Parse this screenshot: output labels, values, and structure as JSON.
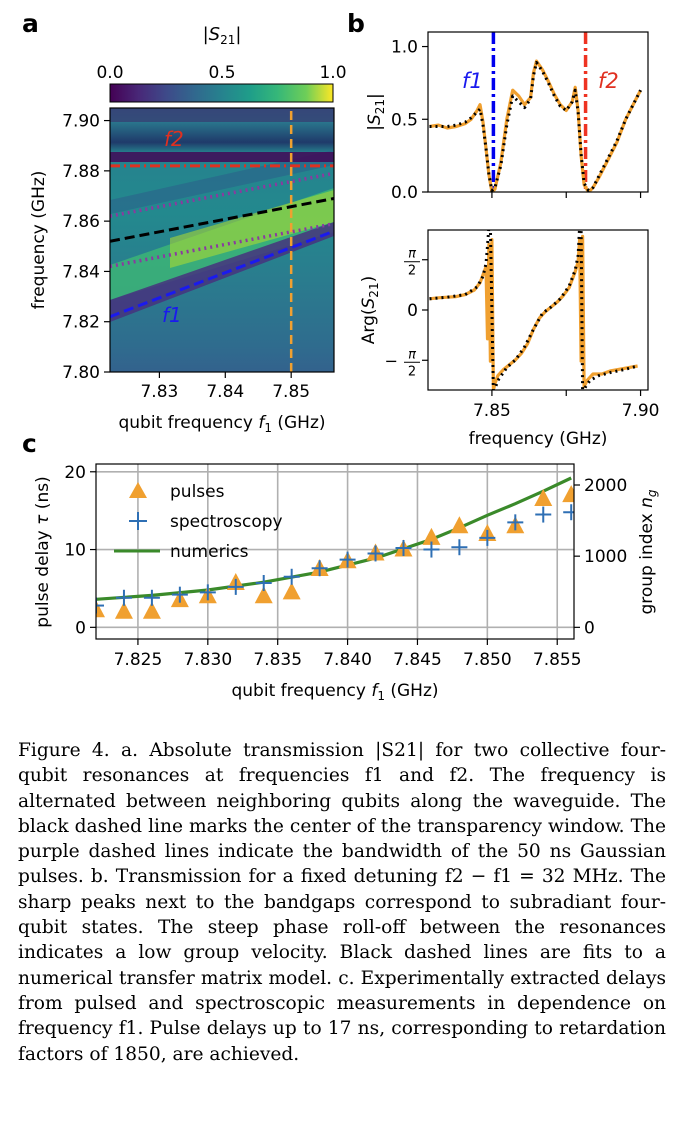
{
  "figure": {
    "panel_a_letter": "a",
    "panel_b_letter": "b",
    "panel_c_letter": "c"
  },
  "chart_data": [
    {
      "id": "a",
      "type": "heatmap",
      "colorbar_label": "|S21|",
      "colorbar_ticks": [
        "0.0",
        "0.5",
        "1.0"
      ],
      "xlabel": "qubit frequency f1 (GHz)",
      "ylabel": "frequency (GHz)",
      "xlim": [
        7.8225,
        7.8565
      ],
      "ylim": [
        7.8,
        7.905
      ],
      "x_ticks": [
        7.83,
        7.84,
        7.85
      ],
      "x_tick_labels": [
        "7.83",
        "7.84",
        "7.85"
      ],
      "y_ticks": [
        7.8,
        7.82,
        7.84,
        7.86,
        7.88,
        7.9
      ],
      "y_tick_labels": [
        "7.80",
        "7.82",
        "7.84",
        "7.86",
        "7.88",
        "7.90"
      ],
      "lines": [
        {
          "label": "f2",
          "style": "red dash-dot",
          "x": [
            7.8225,
            7.8565
          ],
          "y": [
            7.882,
            7.882
          ]
        },
        {
          "label": "",
          "style": "black dashed",
          "x": [
            7.8225,
            7.8565
          ],
          "y": [
            7.852,
            7.869
          ]
        },
        {
          "label": "",
          "style": "purple dotted upper",
          "x": [
            7.8225,
            7.8565
          ],
          "y": [
            7.862,
            7.879
          ]
        },
        {
          "label": "",
          "style": "purple dotted lower",
          "x": [
            7.8225,
            7.8565
          ],
          "y": [
            7.842,
            7.859
          ]
        },
        {
          "label": "f1",
          "style": "blue dashed",
          "x": [
            7.8225,
            7.8565
          ],
          "y": [
            7.822,
            7.856
          ]
        },
        {
          "label": "",
          "style": "orange dashed vertical",
          "x": [
            7.85,
            7.85
          ],
          "y": [
            7.8,
            7.905
          ]
        }
      ]
    },
    {
      "id": "b-top",
      "type": "line",
      "ylabel": "|S21|",
      "xlim": [
        7.8285,
        7.9025
      ],
      "ylim": [
        0.0,
        1.1
      ],
      "y_ticks": [
        0.0,
        0.5,
        1.0
      ],
      "y_tick_labels": [
        "0.0",
        "0.5",
        "1.0"
      ],
      "markers": [
        {
          "label": "f1",
          "x": 7.8505,
          "color": "#0000ee"
        },
        {
          "label": "f2",
          "x": 7.8815,
          "color": "#ee3322"
        }
      ],
      "series": [
        {
          "name": "",
          "x": [
            7.829,
            7.832,
            7.835,
            7.838,
            7.841,
            7.843,
            7.845,
            7.846,
            7.847,
            7.848,
            7.849,
            7.85,
            7.851,
            7.853,
            7.855,
            7.857,
            7.859,
            7.861,
            7.863,
            7.864,
            7.865,
            7.867,
            7.869,
            7.871,
            7.873,
            7.875,
            7.877,
            7.878,
            7.879,
            7.88,
            7.881,
            7.8825,
            7.884,
            7.886,
            7.889,
            7.892,
            7.895,
            7.898,
            7.9
          ],
          "y": [
            0.45,
            0.46,
            0.44,
            0.45,
            0.47,
            0.5,
            0.56,
            0.6,
            0.48,
            0.3,
            0.12,
            0.0,
            0.02,
            0.2,
            0.5,
            0.7,
            0.66,
            0.6,
            0.65,
            0.82,
            0.9,
            0.84,
            0.76,
            0.67,
            0.6,
            0.56,
            0.62,
            0.72,
            0.56,
            0.25,
            0.05,
            0.0,
            0.03,
            0.1,
            0.22,
            0.34,
            0.5,
            0.62,
            0.7
          ]
        },
        {
          "name": "",
          "x": [
            7.829,
            7.832,
            7.835,
            7.838,
            7.841,
            7.843,
            7.845,
            7.846,
            7.847,
            7.848,
            7.849,
            7.85,
            7.851,
            7.853,
            7.855,
            7.857,
            7.859,
            7.861,
            7.863,
            7.864,
            7.865,
            7.867,
            7.869,
            7.871,
            7.873,
            7.875,
            7.877,
            7.878,
            7.879,
            7.88,
            7.881,
            7.8825,
            7.884,
            7.886,
            7.889,
            7.892,
            7.895,
            7.898,
            7.9
          ],
          "y": [
            0.45,
            0.45,
            0.45,
            0.46,
            0.48,
            0.51,
            0.55,
            0.57,
            0.46,
            0.3,
            0.12,
            0.01,
            0.03,
            0.18,
            0.46,
            0.66,
            0.62,
            0.58,
            0.64,
            0.8,
            0.89,
            0.83,
            0.75,
            0.66,
            0.59,
            0.56,
            0.62,
            0.7,
            0.55,
            0.26,
            0.06,
            0.01,
            0.03,
            0.11,
            0.23,
            0.35,
            0.5,
            0.62,
            0.7
          ]
        }
      ]
    },
    {
      "id": "b-bottom",
      "type": "line",
      "xlabel": "frequency (GHz)",
      "ylabel": "Arg(S21)",
      "xlim": [
        7.8285,
        7.9025
      ],
      "ylim": [
        -2.5,
        2.5
      ],
      "x_ticks": [
        7.85,
        7.875,
        7.9
      ],
      "x_tick_labels": [
        "7.85",
        "",
        "7.90"
      ],
      "y_ticks": [
        1.5708,
        0,
        -1.5708
      ],
      "y_tick_labels": [
        "π/2",
        "0",
        "−π/2"
      ],
      "series": [
        {
          "name": "",
          "x": [
            7.829,
            7.832,
            7.835,
            7.838,
            7.841,
            7.844,
            7.846,
            7.847,
            7.848,
            7.8485,
            7.849,
            7.8495,
            7.85,
            7.8505,
            7.851,
            7.852,
            7.854,
            7.856,
            7.858,
            7.86,
            7.862,
            7.864,
            7.866,
            7.868,
            7.87,
            7.872,
            7.874,
            7.876,
            7.877,
            7.878,
            7.879,
            7.8795,
            7.88,
            7.8805,
            7.881,
            7.8815,
            7.882,
            7.884,
            7.887,
            7.89,
            7.893,
            7.896,
            7.899
          ],
          "y": [
            0.35,
            0.38,
            0.4,
            0.42,
            0.48,
            0.62,
            0.85,
            1.1,
            1.35,
            -0.9,
            2.05,
            -1.6,
            2.2,
            -2.5,
            -2.3,
            -2.05,
            -1.85,
            -1.7,
            -1.55,
            -1.35,
            -1.05,
            -0.6,
            -0.25,
            -0.05,
            0.1,
            0.25,
            0.45,
            0.7,
            0.95,
            1.2,
            1.5,
            2.2,
            -1.6,
            2.3,
            -2.4,
            -2.3,
            -2.2,
            -2.0,
            -2.0,
            -1.9,
            -1.85,
            -1.8,
            -1.75
          ]
        },
        {
          "name": "",
          "x": [
            7.829,
            7.835,
            7.841,
            7.845,
            7.847,
            7.848,
            7.8485,
            7.849,
            7.8495,
            7.8505,
            7.852,
            7.855,
            7.858,
            7.861,
            7.864,
            7.867,
            7.87,
            7.873,
            7.876,
            7.878,
            7.879,
            7.8795,
            7.88,
            7.8805,
            7.8815,
            7.883,
            7.886,
            7.89,
            7.895,
            7.899
          ],
          "y": [
            0.35,
            0.4,
            0.48,
            0.72,
            1.05,
            1.45,
            2.0,
            2.6,
            2.6,
            -2.6,
            -2.2,
            -1.8,
            -1.55,
            -1.15,
            -0.6,
            -0.1,
            0.1,
            0.35,
            0.75,
            1.25,
            1.7,
            2.6,
            2.6,
            -2.6,
            -2.4,
            -2.2,
            -2.05,
            -1.95,
            -1.85,
            -1.75
          ]
        }
      ]
    },
    {
      "id": "c",
      "type": "scatter",
      "xlabel": "qubit frequency f1 (GHz)",
      "ylabel": "pulse delay τ (ns)",
      "ylabel_right": "group index ng",
      "xlim": [
        7.822,
        7.8562
      ],
      "ylim": [
        -1.5,
        21
      ],
      "x_ticks": [
        7.825,
        7.83,
        7.835,
        7.84,
        7.845,
        7.85,
        7.855
      ],
      "x_tick_labels": [
        "7.825",
        "7.830",
        "7.835",
        "7.840",
        "7.845",
        "7.850",
        "7.855"
      ],
      "y_ticks": [
        0,
        10,
        20
      ],
      "y_tick_labels": [
        "0",
        "10",
        "20"
      ],
      "y_right_ticks": [
        0,
        1000,
        2000
      ],
      "y_right_tick_labels": [
        "0",
        "1000",
        "2000"
      ],
      "grid": true,
      "legend": "top-left",
      "series": [
        {
          "name": "pulses",
          "marker": "triangle",
          "color": "#f0a030",
          "x": [
            7.822,
            7.824,
            7.826,
            7.828,
            7.83,
            7.832,
            7.834,
            7.836,
            7.838,
            7.84,
            7.842,
            7.844,
            7.846,
            7.848,
            7.85,
            7.852,
            7.854,
            7.856
          ],
          "y": [
            2.2,
            2.0,
            2.0,
            3.5,
            4.0,
            5.7,
            4.0,
            4.5,
            7.5,
            8.5,
            9.5,
            10.0,
            11.5,
            13.0,
            12.0,
            13.0,
            16.5,
            17.0
          ]
        },
        {
          "name": "spectroscopy",
          "marker": "plus",
          "color": "#2e6fb4",
          "x": [
            7.822,
            7.824,
            7.826,
            7.828,
            7.83,
            7.832,
            7.834,
            7.836,
            7.838,
            7.84,
            7.842,
            7.844,
            7.846,
            7.848,
            7.85,
            7.852,
            7.854,
            7.856
          ],
          "y": [
            2.8,
            3.8,
            3.8,
            4.2,
            4.5,
            5.2,
            5.7,
            6.5,
            7.6,
            8.7,
            9.5,
            10.2,
            10.0,
            10.3,
            11.5,
            13.5,
            14.5,
            14.8
          ]
        },
        {
          "name": "numerics",
          "marker": "line",
          "color": "#3a8a2a",
          "x": [
            7.822,
            7.826,
            7.83,
            7.834,
            7.838,
            7.842,
            7.846,
            7.848,
            7.85,
            7.852,
            7.854,
            7.856
          ],
          "y": [
            3.6,
            4.1,
            4.8,
            5.8,
            7.1,
            8.9,
            11.3,
            12.8,
            14.4,
            15.9,
            17.5,
            19.2
          ]
        }
      ]
    }
  ],
  "caption": {
    "label": "Figure 4.",
    "text": "a. Absolute transmission |S21| for two collective four-qubit resonances at frequencies f1 and f2. The frequency is alternated between neighboring qubits along the waveguide. The black dashed line marks the center of the transparency window. The purple dashed lines indicate the bandwidth of the 50 ns Gaussian pulses. b. Transmission for a fixed detuning f2 − f1 = 32 MHz. The sharp peaks next to the bandgaps correspond to subradiant four-qubit states. The steep phase roll-off between the resonances indicates a low group velocity. Black dashed lines are fits to a numerical transfer matrix model. c. Experimentally extracted delays from pulsed and spectroscopic measurements in dependence on frequency f1. Pulse delays up to 17 ns, corresponding to retardation factors of 1850, are achieved."
  }
}
